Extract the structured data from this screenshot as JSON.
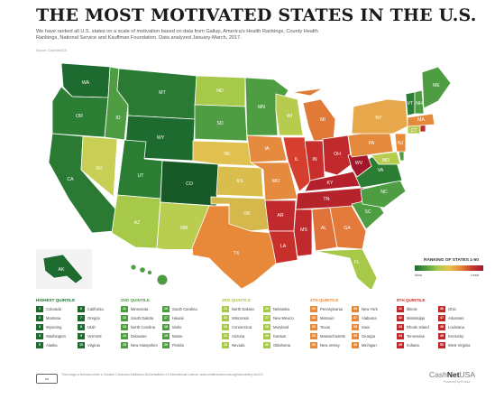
{
  "header": {
    "title": "THE MOST MOTIVATED STATES IN THE U.S.",
    "subtitle": "We have ranked all U.S. states on a scale of motivation based on data from Gallup, America's Health Rankings, County Health Rankings, National Service and Kauffman Foundation. Data analyzed January-March, 2017.",
    "credit": "Source: CashNetUSA"
  },
  "legend": {
    "title": "RANKING OF STATES 1-50",
    "low_label": "Most",
    "high_label": "Least"
  },
  "colors": {
    "q1": "#1e6b2f",
    "q2": "#4f9d42",
    "q3": "#a7c94a",
    "q4": "#e8893a",
    "q5": "#c12a2c"
  },
  "quintiles": [
    {
      "label": "HIGHEST QUINTILE",
      "color": "#1e6b2f",
      "states": [
        {
          "rank": "1",
          "name": "Colorado"
        },
        {
          "rank": "6",
          "name": "California"
        },
        {
          "rank": "2",
          "name": "Montana"
        },
        {
          "rank": "7",
          "name": "Oregon"
        },
        {
          "rank": "3",
          "name": "Wyoming"
        },
        {
          "rank": "8",
          "name": "Utah"
        },
        {
          "rank": "4",
          "name": "Washington"
        },
        {
          "rank": "9",
          "name": "Vermont"
        },
        {
          "rank": "5",
          "name": "Alaska"
        },
        {
          "rank": "10",
          "name": "Virginia"
        }
      ]
    },
    {
      "label": "2ND QUINTILE",
      "color": "#4f9d42",
      "states": [
        {
          "rank": "11",
          "name": "Minnesota"
        },
        {
          "rank": "16",
          "name": "South Carolina"
        },
        {
          "rank": "12",
          "name": "South Dakota"
        },
        {
          "rank": "17",
          "name": "Hawaii"
        },
        {
          "rank": "13",
          "name": "North Carolina"
        },
        {
          "rank": "18",
          "name": "Idaho"
        },
        {
          "rank": "14",
          "name": "Delaware"
        },
        {
          "rank": "19",
          "name": "Maine"
        },
        {
          "rank": "15",
          "name": "New Hampshire"
        },
        {
          "rank": "20",
          "name": "Florida"
        }
      ]
    },
    {
      "label": "3RD QUINTILE",
      "color": "#a7c94a",
      "states": [
        {
          "rank": "21",
          "name": "North Dakota"
        },
        {
          "rank": "26",
          "name": "Nebraska"
        },
        {
          "rank": "22",
          "name": "Wisconsin"
        },
        {
          "rank": "27",
          "name": "New Mexico"
        },
        {
          "rank": "23",
          "name": "Connecticut"
        },
        {
          "rank": "28",
          "name": "Maryland"
        },
        {
          "rank": "24",
          "name": "Arizona"
        },
        {
          "rank": "29",
          "name": "Kansas"
        },
        {
          "rank": "25",
          "name": "Nevada"
        },
        {
          "rank": "30",
          "name": "Oklahoma"
        }
      ]
    },
    {
      "label": "4TH QUINTILE",
      "color": "#e8893a",
      "states": [
        {
          "rank": "31",
          "name": "Pennsylvania"
        },
        {
          "rank": "36",
          "name": "New York"
        },
        {
          "rank": "32",
          "name": "Missouri"
        },
        {
          "rank": "37",
          "name": "Alabama"
        },
        {
          "rank": "33",
          "name": "Texas"
        },
        {
          "rank": "38",
          "name": "Iowa"
        },
        {
          "rank": "34",
          "name": "Massachusetts"
        },
        {
          "rank": "39",
          "name": "Georgia"
        },
        {
          "rank": "35",
          "name": "New Jersey"
        },
        {
          "rank": "40",
          "name": "Michigan"
        }
      ]
    },
    {
      "label": "5TH QUINTILE",
      "color": "#c12a2c",
      "states": [
        {
          "rank": "41",
          "name": "Illinois"
        },
        {
          "rank": "46",
          "name": "Ohio"
        },
        {
          "rank": "42",
          "name": "Mississippi"
        },
        {
          "rank": "47",
          "name": "Arkansas"
        },
        {
          "rank": "43",
          "name": "Rhode Island"
        },
        {
          "rank": "48",
          "name": "Louisiana"
        },
        {
          "rank": "44",
          "name": "Tennessee"
        },
        {
          "rank": "49",
          "name": "Kentucky"
        },
        {
          "rank": "45",
          "name": "Indiana"
        },
        {
          "rank": "50",
          "name": "West Virginia"
        }
      ]
    }
  ],
  "map_labels": {
    "WA": "WA",
    "OR": "OR",
    "CA": "CA",
    "NV": "NV",
    "ID": "ID",
    "MT": "MT",
    "WY": "WY",
    "UT": "UT",
    "CO": "CO",
    "AZ": "AZ",
    "NM": "NM",
    "ND": "ND",
    "SD": "SD",
    "NE": "NE",
    "KS": "KS",
    "OK": "OK",
    "TX": "TX",
    "MN": "MN",
    "IA": "IA",
    "MO": "MO",
    "AR": "AR",
    "LA": "LA",
    "WI": "WI",
    "IL": "IL",
    "MI": "MI",
    "IN": "IN",
    "OH": "OH",
    "KY": "KY",
    "TN": "TN",
    "MS": "MS",
    "AL": "AL",
    "GA": "GA",
    "FL": "FL",
    "SC": "SC",
    "NC": "NC",
    "VA": "VA",
    "WV": "WV",
    "PA": "PA",
    "NY": "NY",
    "VT": "VT",
    "NH": "NH",
    "ME": "ME",
    "MA": "MA",
    "CT": "CT",
    "NJ": "NJ",
    "DE": "DE",
    "MD": "MD",
    "RI": "RI",
    "AK": "AK",
    "HI": "HI"
  },
  "footer": {
    "license": "cc",
    "text": "This image is licensed under a Creative Commons Attribution-NoDerivatives 4.0 International License. www.creativecommons.org/licenses/by-nd/4.0/",
    "brand_prefix": "Cash",
    "brand_mid": "Net",
    "brand_suffix": "USA",
    "brand_tag": "Powered by Enova"
  }
}
